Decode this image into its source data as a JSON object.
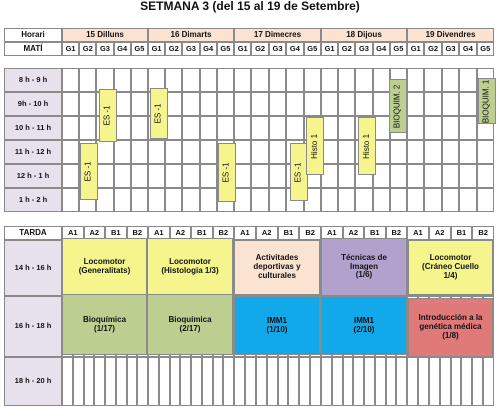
{
  "title": "SETMANA 3 (del 15 al 19 de Setembre)",
  "labels": {
    "horari": "Horari",
    "mati": "MATÍ",
    "tarda": "TARDA"
  },
  "days": [
    "15 Dilluns",
    "16 Dimarts",
    "17 Dimecres",
    "18 Dijous",
    "19 Divendres"
  ],
  "groups_mati": [
    "G1",
    "G2",
    "G3",
    "G4",
    "G5"
  ],
  "groups_tarda": [
    "A1",
    "A2",
    "B1",
    "B2"
  ],
  "morning_slots": [
    "8 h - 9 h",
    "9h - 10 h",
    "10 h - 11 h",
    "11 h - 12 h",
    "12 h - 1 h",
    "1 h - 2 h"
  ],
  "afternoon_slots": [
    "14 h - 16 h",
    "16 h - 18 h",
    "18 h - 20 h"
  ],
  "colors": {
    "day_header": "#fbe2d1",
    "time_col": "#e7e1ee",
    "yellow": "#f6f48c",
    "green": "#bccf91",
    "peach": "#fbe3d2",
    "purple": "#b3a1cd",
    "blue": "#12a9ea",
    "pink": "#e07a79"
  },
  "morning_blocks": [
    {
      "label": "ES -1",
      "color": "yellow"
    },
    {
      "label": "ES -1",
      "color": "yellow"
    },
    {
      "label": "ES -1",
      "color": "yellow"
    },
    {
      "label": "ES -1",
      "color": "yellow"
    },
    {
      "label": "ES -1",
      "color": "yellow"
    },
    {
      "label": "Histo 1",
      "color": "yellow"
    },
    {
      "label": "Histo 1",
      "color": "yellow"
    },
    {
      "label": "Histo 1",
      "color": "yellow"
    },
    {
      "label": "BIOQUIM. 2",
      "color": "green"
    },
    {
      "label": "BIOQUIM. 1",
      "color": "green"
    }
  ],
  "afternoon_blocks": [
    {
      "label": "Locomotor\n(Generalitats)",
      "color": "yellow"
    },
    {
      "label": "Locomotor\n(Histologia 1/3)",
      "color": "yellow"
    },
    {
      "label": "Activitades\ndeportivas y\nculturales",
      "color": "peach"
    },
    {
      "label": "Técnicas de\nImagen\n(1/6)",
      "color": "purple"
    },
    {
      "label": "Locomotor\n(Cráneo Cuello\n1/4)",
      "color": "yellow"
    },
    {
      "label": "Bioquímica\n(1/17)",
      "color": "green"
    },
    {
      "label": "Bioquímica\n(2/17)",
      "color": "green"
    },
    {
      "label": "IMM1\n(1/10)",
      "color": "blue"
    },
    {
      "label": "IMM1\n(2/10)",
      "color": "blue"
    },
    {
      "label": "Introducción a la\ngenética médica\n(1/8)",
      "color": "pink"
    }
  ]
}
